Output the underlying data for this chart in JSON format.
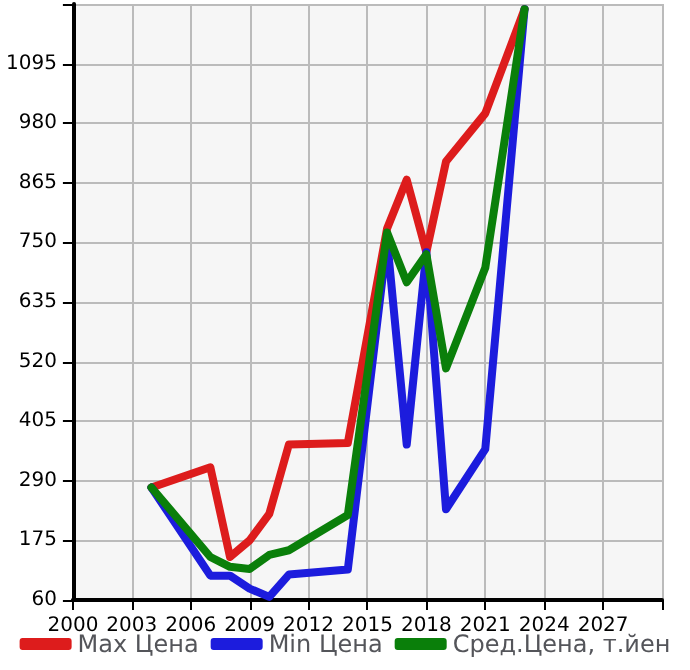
{
  "chart_data": {
    "type": "line",
    "xlim": [
      2000,
      2030
    ],
    "xticks": [
      2000,
      2003,
      2006,
      2009,
      2012,
      2015,
      2018,
      2021,
      2024,
      2027,
      {
        "value": 2030,
        "label": null
      }
    ],
    "ylim": [
      60,
      1210
    ],
    "yticks": [
      60,
      175,
      290,
      405,
      520,
      635,
      750,
      865,
      980,
      1095,
      {
        "value": 1210,
        "label": null
      }
    ],
    "grid": true,
    "legend": "bottom",
    "marker": "none",
    "line_style": "solid",
    "series": [
      {
        "name": "Мах Цена",
        "color": "#dd1c1c",
        "x": [
          2004,
          2007,
          2008,
          2009,
          2010,
          2011,
          2014,
          2016,
          2017,
          2018,
          2019,
          2021,
          2023
        ],
        "values": [
          277,
          316,
          143,
          175,
          226,
          360,
          363,
          777,
          871,
          731,
          906,
          999,
          1200
        ]
      },
      {
        "name": "Min Цена",
        "color": "#1c1cdd",
        "x": [
          2004,
          2007,
          2008,
          2009,
          2010,
          2011,
          2014,
          2016,
          2017,
          2018,
          2019,
          2021,
          2023
        ],
        "values": [
          277,
          107,
          107,
          82,
          66,
          109,
          119,
          755,
          360,
          731,
          235,
          351,
          1200
        ]
      },
      {
        "name": "Сред.Цена, т.йен",
        "color": "#0a7f0a",
        "x": [
          2004,
          2007,
          2008,
          2009,
          2010,
          2011,
          2014,
          2016,
          2017,
          2018,
          2019,
          2021,
          2023
        ],
        "values": [
          277,
          143,
          124,
          120,
          147,
          156,
          224,
          769,
          673,
          727,
          507,
          701,
          1200
        ]
      }
    ]
  }
}
